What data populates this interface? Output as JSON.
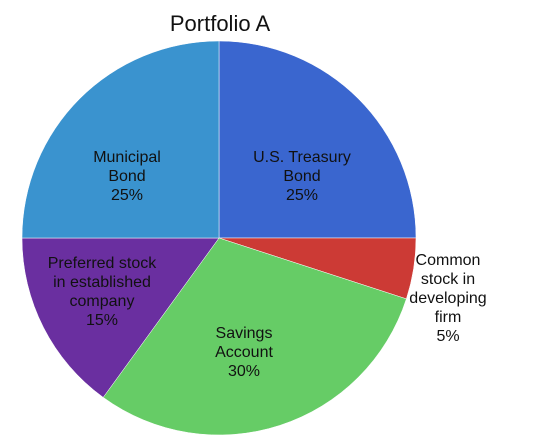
{
  "chart_data": {
    "type": "pie",
    "title": "Portfolio A",
    "slices": [
      {
        "label_lines": [
          "U.S. Treasury",
          "Bond"
        ],
        "pct_text": "25%",
        "value": 25,
        "color": "#3a66cf"
      },
      {
        "label_lines": [
          "Common",
          "stock in",
          "developing",
          "firm"
        ],
        "pct_text": "5%",
        "value": 5,
        "color": "#cc3a35"
      },
      {
        "label_lines": [
          "Savings",
          "Account"
        ],
        "pct_text": "30%",
        "value": 30,
        "color": "#66cc66"
      },
      {
        "label_lines": [
          "Preferred stock",
          "in established",
          "company"
        ],
        "pct_text": "15%",
        "value": 15,
        "color": "#6a2fa0"
      },
      {
        "label_lines": [
          "Municipal",
          "Bond"
        ],
        "pct_text": "25%",
        "value": 25,
        "color": "#3a93cf"
      }
    ]
  }
}
